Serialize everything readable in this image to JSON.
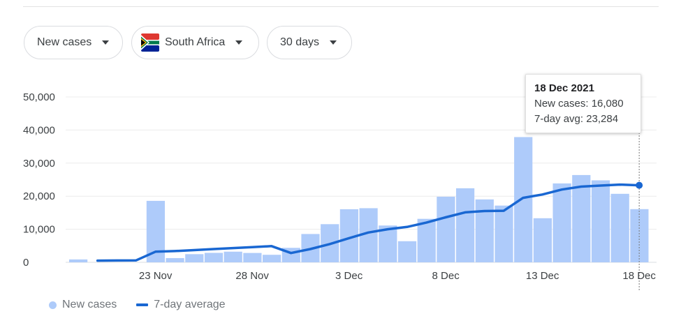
{
  "controls": {
    "metric": "New cases",
    "country": "South Africa",
    "range": "30 days"
  },
  "colors": {
    "bar": "#aecbfa",
    "line": "#1967d2",
    "grid": "#ececec",
    "axis_text": "#3c4043"
  },
  "icons": {
    "caret": "caret-down-icon",
    "flag": "south-africa-flag-icon"
  },
  "tooltip": {
    "date": "18 Dec 2021",
    "cases_line": "New cases: 16,080",
    "avg_line": "7-day avg: 23,284"
  },
  "legend": {
    "bars": "New cases",
    "line": "7-day average"
  },
  "chart_data": {
    "type": "bar",
    "ylim": [
      0,
      50000
    ],
    "yticks": [
      0,
      10000,
      20000,
      30000,
      40000,
      50000
    ],
    "ytick_labels": [
      "0",
      "10,000",
      "20,000",
      "30,000",
      "40,000",
      "50,000"
    ],
    "x_tick_labels": [
      {
        "index": 4,
        "label": "23 Nov"
      },
      {
        "index": 9,
        "label": "28 Nov"
      },
      {
        "index": 14,
        "label": "3 Dec"
      },
      {
        "index": 19,
        "label": "8 Dec"
      },
      {
        "index": 24,
        "label": "13 Dec"
      },
      {
        "index": 29,
        "label": "18 Dec"
      }
    ],
    "grid": true,
    "legend": "bottom-left",
    "series": [
      {
        "name": "New cases",
        "type": "bar",
        "values": [
          868,
          0,
          0,
          0,
          18586,
          1275,
          2465,
          2858,
          3220,
          2828,
          2273,
          4373,
          8561,
          11535,
          16055,
          16366,
          11125,
          6381,
          13147,
          19842,
          22391,
          19018,
          17154,
          37875,
          13331,
          23857,
          26389,
          24785,
          20713,
          16080
        ]
      },
      {
        "name": "7-day average",
        "type": "line",
        "values": [
          null,
          500,
          550,
          600,
          3200,
          3400,
          3700,
          4000,
          4300,
          4600,
          4900,
          2800,
          4000,
          5500,
          7300,
          9000,
          10000,
          10700,
          12000,
          13600,
          15100,
          15500,
          15600,
          19500,
          20500,
          22000,
          22900,
          23200,
          23500,
          23284
        ]
      }
    ],
    "selected_index": 29
  }
}
